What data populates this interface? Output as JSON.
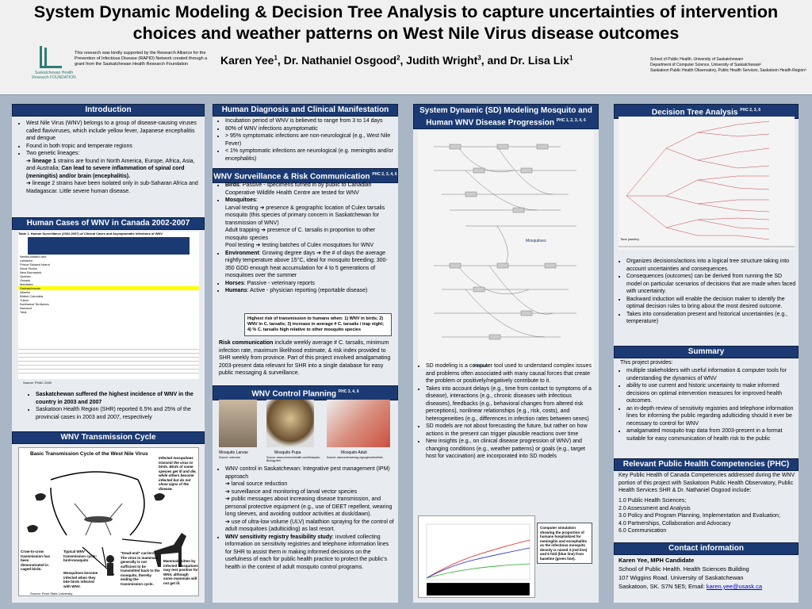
{
  "header": {
    "title": "System Dynamic Modeling & Decision Tree Analysis to capture uncertainties of intervention choices and weather patterns on West Nile Virus disease outcomes",
    "authors": [
      "Karen Yee",
      "Dr. Nathaniel Osgood",
      "Judith Wright",
      "and Dr. Lisa Lix"
    ],
    "author_sups": [
      "1",
      "2",
      "3",
      "1"
    ],
    "funding": "This research was kindly supported by the Research Alliance for the Prevention of Infectious Disease (RAPID) Network created through a grant from the Saskatchewan Health Research Foundation",
    "logo_text": "Saskatchewan Health Research FOUNDATION",
    "affiliations": [
      "School of Public Health, University of Saskatchewan¹",
      "Department of Computer Science, University of Saskatchewan²",
      "Saskatoon Public Health Observatory, Public Health Services, Saskatoon Health Region³"
    ]
  },
  "col1": {
    "intro_title": "Introduction",
    "intro": [
      "West Nile Virus (WNV) belongs to a group of disease-causing viruses called flaviviruses, which include yellow fever, Japanese encephalitis and dengue",
      "Found in both tropic and temperate regions",
      "Two genetic lineages:"
    ],
    "lineage1_bold": "lineage 1",
    "lineage1": " strains are found in North America, Europe, Africa, Asia, and Australia; ",
    "lineage1_b2": "Can lead to severe inflammation of spinal cord (meningitis) and/or brain (encephalitis).",
    "lineage2": "lineage 2 strains have been isolated only in sub-Saharan Africa and Madagascar. Little severe human disease.",
    "cases_title": "Human Cases of WNV in Canada 2002-2007",
    "table_title": "Table 1. Human Surveillance (2002-2007) of Clinical Cases and Asymptomatic Infections of WNV",
    "table_rows": [
      "Newfoundland and Labrador",
      "Prince Edward Island",
      "Nova Scotia",
      "New Brunswick",
      "Quebec",
      "Ontario",
      "Manitoba",
      "Saskatchewan",
      "Alberta",
      "British Columbia",
      "Yukon",
      "Northwest Territories",
      "Nunavut",
      "Total"
    ],
    "source_table": "Source: PHAC 2009",
    "cases_bullets": [
      "Saskatchewan suffered the highest incidence of WNV in the country in 2003 and 2007",
      "Saskatoon Health Region (SHR) reported 6.5% and 25% of the provincial cases in 2003 and 2007, respectively"
    ],
    "trans_title": "WNV Transmission Cycle",
    "trans_fig_title": "Basic Transmission Cycle of the West Nile Virus",
    "trans_notes": [
      "Infected mosquitoes transmit the virus to birds. Birds of some species get ill and die, while others become infected but do not show signs of the disease.",
      "Typical WNV transmission cycle: bird+mosquito",
      "Crow-to-crow transmission has been demonstrated in caged birds.",
      "Mosquitoes become infected when they bite birds infected with WNV.",
      "\"Dead-end\" carriers: The virus in mammals generally is not sufficient to be transmitted back to the mosquito, thereby ending the transmission cycle.",
      "Mammals bitten by infected mosquitoes may test positive for WNV, although some mammals will not get ill."
    ],
    "trans_source": "Source: Penn State University"
  },
  "col2": {
    "hd_title": "Human Diagnosis and Clinical Manifestation",
    "hd": [
      "Incubation period of WNV is believed to range from 3 to 14 days",
      "80% of WNV infections asymptomatic",
      "> 95% symptomatic infections are non-neurological (e.g., West Nile Fever)",
      "< 1% symptomatic infections are neurological (e.g. meningitis and/or encephalitis)"
    ],
    "surv_title": "WNV Surveillance & Risk Communication",
    "surv_sup": "PHC 2, 3, 4, 6",
    "birds_b": "Birds",
    "birds": ": Passive - specimens turned in by public to Canadian Cooperative Wildlife Health Centre are tested for WNV",
    "mosq_b": "Mosquitoes",
    "mosq": ":",
    "larval": "Larval testing ➔ presence & geographic location of Culex tarsalis mosquito (this species of primary concern in Saskatchewan for transmission of WNV)",
    "adult": "Adult trapping ➔ presence of C. tarsalis in proportion to other mosquito species",
    "pool": "Pool testing ➔ testing batches of Culex mosquitoes for WNV",
    "env_b": "Environment",
    "env": ": Growing degree days ➔ the # of days the average nightly temperature above 15°C, ideal for mosquito breeding; 300-350 GDD enough heat accumulation for 4 to 5 generations of mosquitoes over the summer",
    "horses_b": "Horses",
    "horses": ": Passive - veterinary reports",
    "humans_b": "Humans",
    "humans": ": Active - physician reporting (reportable disease)",
    "highest_risk": "Highest risk of transmission to humans when: 1) WNV in birds; 2) WNV in C. tarsalis; 3) increase in average # C. tarsalis / trap night; 4) % C. tarsalis high relative to other mosquito species",
    "risk_comm_b": "Risk communication",
    "risk_comm": " include weekly average # C. tarsalis, minimum infection rate, maximum likelihood estimate, & risk index provided to SHR weekly from province. Part of this project involved amalgamating 2003-present data relevant for SHR into a single database for easy public messaging & surveillance.",
    "ctrl_title": "WNV Control Planning",
    "ctrl_sup": "PHC 3, 4, 6",
    "img_caps": [
      "Mosquito Larvae",
      "Mosquito Pupa",
      "Mosquito Adult"
    ],
    "img_srcs": [
      "Source: unknown",
      "Source: www.commonhealth.com/Mosquito-Biology.htm",
      "Source: www.sciencemag.org/cgi/content/full/..."
    ],
    "ctrl": [
      "WNV control in Saskatchewan: Integrative pest management (IPM) approach",
      "➔ larval source reduction",
      "➔ surveillance and monitoring of larval vector species",
      "➔ public messages about increasing disease transmission, and personal protective equipment (e.g., use of DEET repellent, wearing long sleeves, and avoiding outdoor activities at dusk/dawn).",
      "➔ use of ultra-low volume (ULV) malathion spraying for the control of adult mosquitoes (adulticiding) as last resort."
    ],
    "ctrl_last_b": "WNV sensitivity registry feasibility study",
    "ctrl_last": ": involved collecting information on sensitivity registries and telephone information lines for SHR to assist them in making informed decisions on the usefulness of each for public health practice to protect the public's health in the context of adult mosquito control programs."
  },
  "col3": {
    "sd_title": "System Dynamic (SD) Modeling Mosquito and Human WNV Disease Progression",
    "sd_sup": "PHC 1, 2, 3, 4, 6",
    "mosq_label": "Mosquitoes",
    "humans_label": "Humans",
    "sd_bullets": [
      "SD modeling is a computer tool used to understand complex issues and problems often associated with many causal forces that create the problem or positively/negatively contribute to it.",
      "Takes into account delays (e.g., time from contact to symptoms of a disease), interactions (e.g., chronic diseases with infectious diseases), feedbacks (e.g., behavioral changes from altered risk perceptions), nonlinear relationships (e.g., risk, costs), and heterogeneities (e.g., differences in infection rates between sexes)",
      "SD models are not about forecasting the future, but rather on how actions in the present can trigger plausible reactions over time",
      "New insights (e.g., on clinical disease progression of WNV) and changing conditions (e.g., weather patterns) or goals (e.g., target host for vaccination) are incorporated into SD models"
    ],
    "sim_note": "Computer simulation showing the proportion of humans hospitalized for meningitis and encephalitis as the infectious mosquito density is raised 3 (red line) and 6 fold (blue line) from baseline (green line)."
  },
  "col4": {
    "dt_title": "Decision Tree Analysis",
    "dt_sup": "PHC 2, 3, 6",
    "dt_axis": "Time (weeks)",
    "dt_bullets": [
      "Organizes decisions/actions into a logical tree structure taking into account uncertainties and consequences.",
      "Consequences (outcomes) can be derived from running the SD model on particular scenarios of decisions that are made when faced with uncertainty.",
      "Backward induction will enable the decision maker to identify the optimal decision rules to bring about the most desired outcome.",
      "Takes into consideration present and historical uncertainties (e.g., temperature)"
    ],
    "summary_title": "Summary",
    "summary_intro": "This project provides:",
    "summary": [
      "multiple stakeholders with useful information & computer tools for understanding the dynamics of WNV",
      "ability to use current and historic uncertainty to make informed decisions on optimal intervention measures for improved health outcomes.",
      "an in-depth review of sensitivity registries and telephone information lines for informing the public regarding adulticiding should it ever be necessary to control for WNV",
      "amalgamated mosquito trap data from 2003-present in a format suitable for easy communication of health risk to the public"
    ],
    "phc_title": "Relevant Public Health Competencies (PHC)",
    "phc_intro": "Key Public Health of Canada Competencies addressed during the WNV portion of this project with Saskatoon Public Health Observatory, Public Health Services SHR & Dr. Nathaniel Osgood include:",
    "phc": [
      "1.0 Public Health Sciences;",
      "2.0 Assessment and Analysis",
      "3.0 Policy and Program Planning, Implementation and Evaluation;",
      "4.0 Partnerships, Collaboration and Advocacy",
      "6.0 Communication"
    ],
    "contact_title": "Contact information",
    "contact_name": "Karen Yee, MPH Candidate",
    "contact_lines": [
      "School of Public Health. Health Sciences Building",
      "107 Wiggins Road. University of Saskatchewan"
    ],
    "contact_city": "Saskatoon, SK. S7N 5E5; Email:",
    "contact_email": "karen.yee@usask.ca"
  }
}
